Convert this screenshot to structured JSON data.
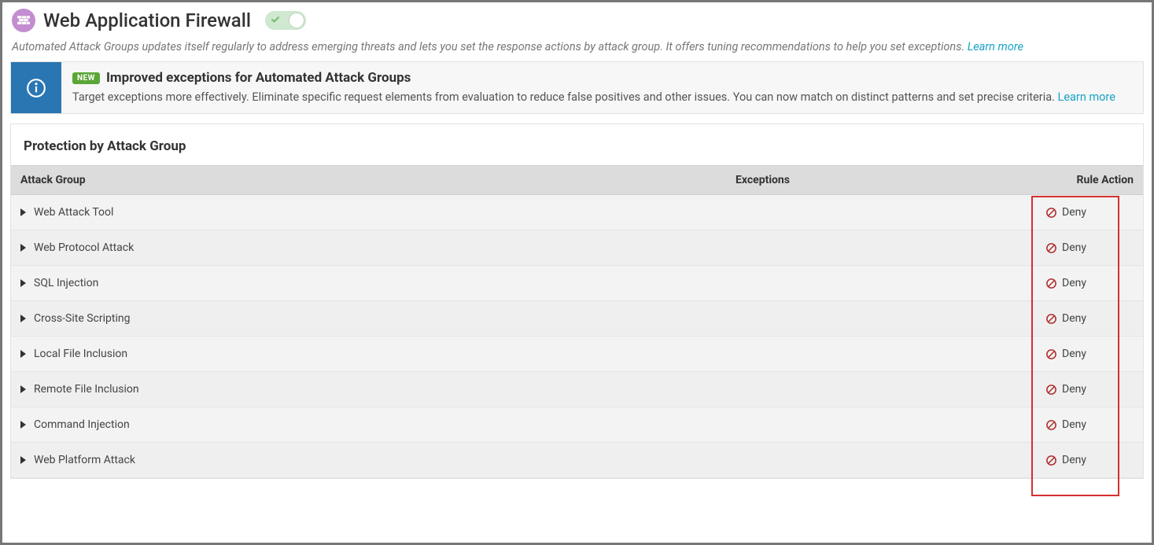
{
  "header": {
    "title": "Web Application Firewall",
    "icon_bg": "#c48dd0",
    "toggle_on": true
  },
  "subtext": {
    "text": "Automated Attack Groups updates itself regularly to address emerging threats and lets you set the response actions by attack group. It offers tuning recommendations to help you set exceptions. ",
    "link": "Learn more"
  },
  "banner": {
    "badge": "NEW",
    "title": "Improved exceptions for Automated Attack Groups",
    "desc": "Target exceptions more effectively. Eliminate specific request elements from evaluation to reduce false positives and other issues. You can now match on distinct patterns and set precise criteria. ",
    "link": "Learn more",
    "accent_color": "#2976b3"
  },
  "panel": {
    "heading": "Protection by Attack Group",
    "columns": {
      "group": "Attack Group",
      "exceptions": "Exceptions",
      "action": "Rule Action"
    },
    "rows": [
      {
        "group": "Web Attack Tool",
        "action": "Deny"
      },
      {
        "group": "Web Protocol Attack",
        "action": "Deny"
      },
      {
        "group": "SQL Injection",
        "action": "Deny"
      },
      {
        "group": "Cross-Site Scripting",
        "action": "Deny"
      },
      {
        "group": "Local File Inclusion",
        "action": "Deny"
      },
      {
        "group": "Remote File Inclusion",
        "action": "Deny"
      },
      {
        "group": "Command Injection",
        "action": "Deny"
      },
      {
        "group": "Web Platform Attack",
        "action": "Deny"
      }
    ],
    "deny_icon_color": "#b03030",
    "highlight_color": "#d62f2f"
  }
}
